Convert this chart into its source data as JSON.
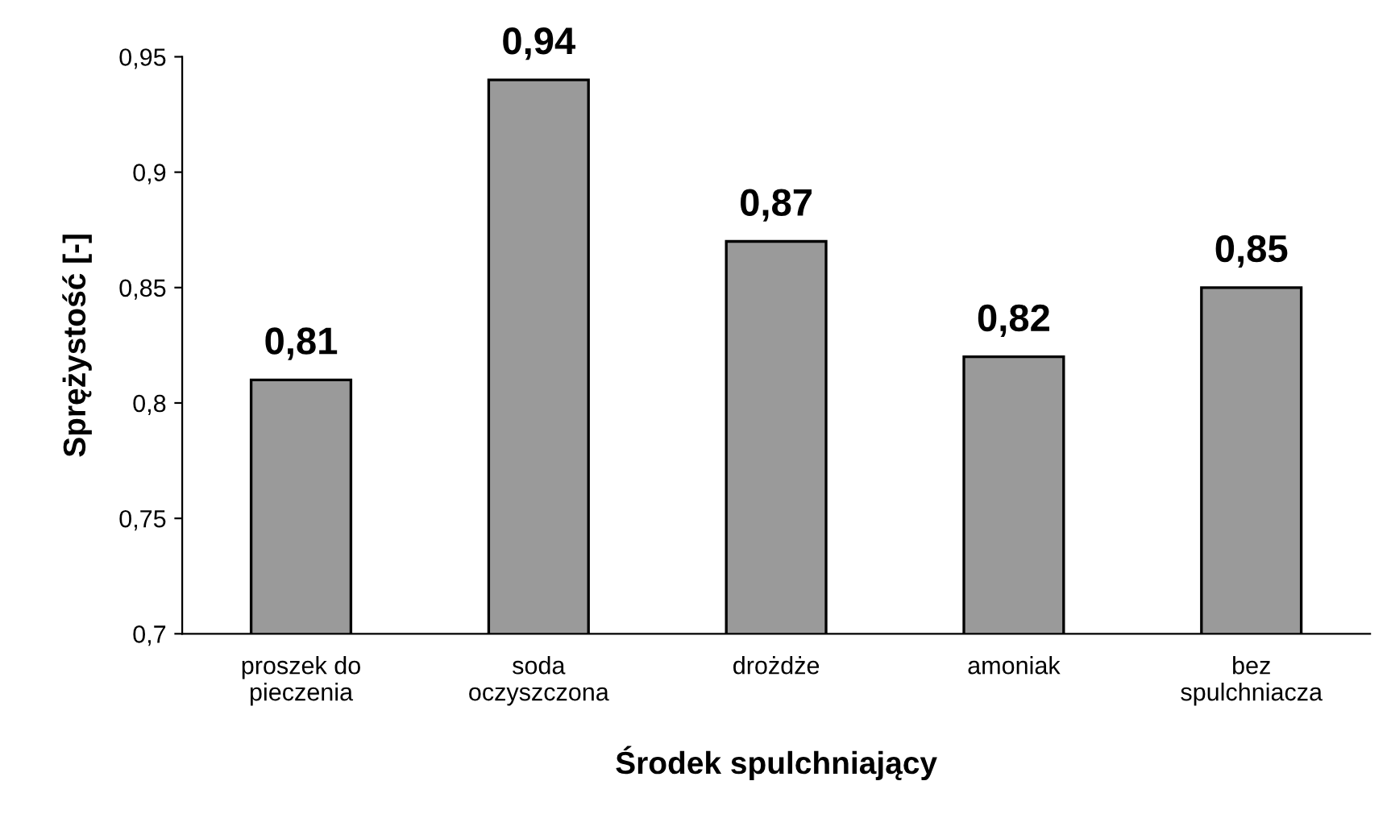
{
  "chart_data": {
    "type": "bar",
    "xlabel": "Środek spulchniający",
    "ylabel": "Sprężystość [-]",
    "categories": [
      "proszek do\npieczenia",
      "soda\noczyszczona",
      "drożdże",
      "amoniak",
      "bez\nspulchniacza"
    ],
    "values": [
      0.81,
      0.94,
      0.87,
      0.82,
      0.85
    ],
    "value_labels": [
      "0,81",
      "0,94",
      "0,87",
      "0,82",
      "0,85"
    ],
    "color": "#9a9a9a",
    "ylim": [
      0.7,
      0.95
    ],
    "yticks": [
      {
        "value": 0.7,
        "label": "0,7"
      },
      {
        "value": 0.75,
        "label": "0,75"
      },
      {
        "value": 0.8,
        "label": "0,8"
      },
      {
        "value": 0.85,
        "label": "0,85"
      },
      {
        "value": 0.9,
        "label": "0,9"
      },
      {
        "value": 0.95,
        "label": "0,95"
      }
    ],
    "grid": false
  }
}
